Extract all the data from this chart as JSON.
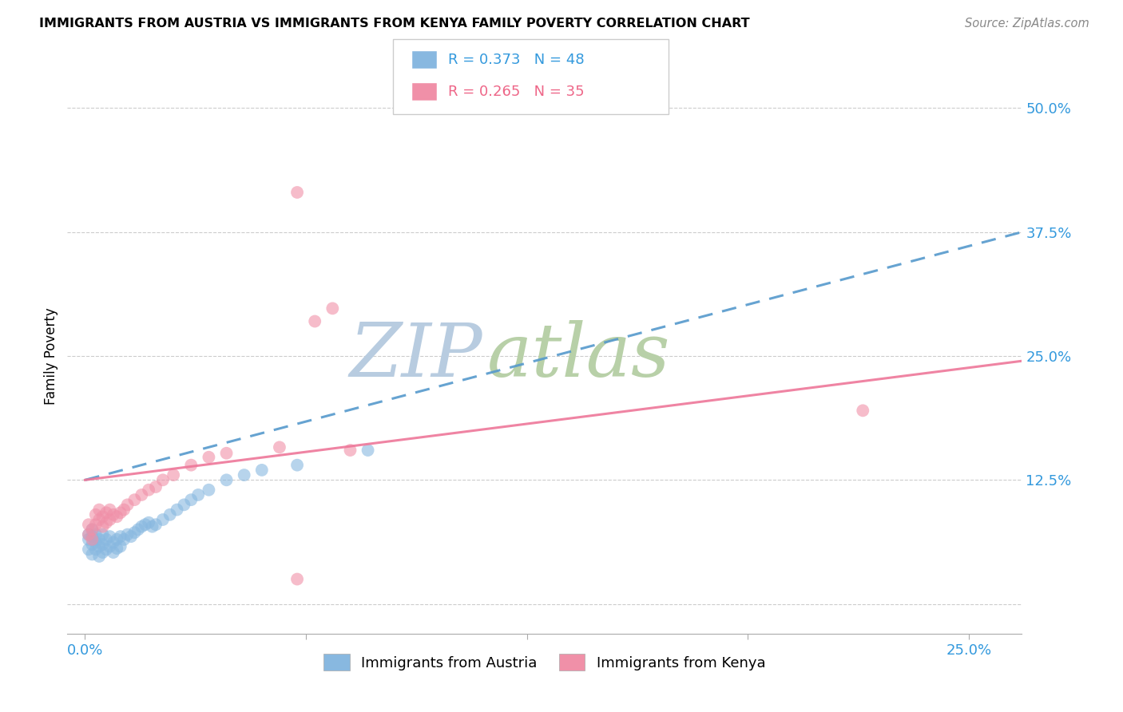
{
  "title": "IMMIGRANTS FROM AUSTRIA VS IMMIGRANTS FROM KENYA FAMILY POVERTY CORRELATION CHART",
  "source": "Source: ZipAtlas.com",
  "ylabel": "Family Poverty",
  "y_ticks": [
    0.0,
    0.125,
    0.25,
    0.375,
    0.5
  ],
  "y_tick_labels": [
    "",
    "12.5%",
    "25.0%",
    "37.5%",
    "50.0%"
  ],
  "x_ticks": [
    0.0,
    0.0625,
    0.125,
    0.1875,
    0.25
  ],
  "x_tick_labels": [
    "0.0%",
    "",
    "",
    "",
    "25.0%"
  ],
  "xlim": [
    -0.005,
    0.265
  ],
  "ylim": [
    -0.03,
    0.53
  ],
  "austria_R": 0.373,
  "austria_N": 48,
  "kenya_R": 0.265,
  "kenya_N": 35,
  "austria_dot_color": "#88b8e0",
  "kenya_dot_color": "#f090a8",
  "austria_line_color": "#5599cc",
  "kenya_line_color": "#ee7799",
  "watermark_zip_color": "#b8cce0",
  "watermark_atlas_color": "#c8d8b0",
  "austria_x": [
    0.001,
    0.001,
    0.001,
    0.002,
    0.002,
    0.002,
    0.002,
    0.003,
    0.003,
    0.003,
    0.004,
    0.004,
    0.004,
    0.005,
    0.005,
    0.005,
    0.006,
    0.006,
    0.007,
    0.007,
    0.008,
    0.008,
    0.009,
    0.009,
    0.01,
    0.01,
    0.011,
    0.012,
    0.013,
    0.014,
    0.015,
    0.016,
    0.017,
    0.018,
    0.019,
    0.02,
    0.022,
    0.024,
    0.026,
    0.028,
    0.03,
    0.032,
    0.035,
    0.04,
    0.045,
    0.05,
    0.06,
    0.08
  ],
  "austria_y": [
    0.055,
    0.065,
    0.07,
    0.05,
    0.06,
    0.068,
    0.075,
    0.055,
    0.062,
    0.07,
    0.048,
    0.058,
    0.065,
    0.052,
    0.06,
    0.07,
    0.055,
    0.065,
    0.058,
    0.068,
    0.052,
    0.062,
    0.056,
    0.065,
    0.058,
    0.068,
    0.065,
    0.07,
    0.068,
    0.072,
    0.075,
    0.078,
    0.08,
    0.082,
    0.078,
    0.08,
    0.085,
    0.09,
    0.095,
    0.1,
    0.105,
    0.11,
    0.115,
    0.125,
    0.13,
    0.135,
    0.14,
    0.155
  ],
  "kenya_x": [
    0.001,
    0.001,
    0.002,
    0.002,
    0.003,
    0.003,
    0.004,
    0.004,
    0.005,
    0.005,
    0.006,
    0.006,
    0.007,
    0.007,
    0.008,
    0.009,
    0.01,
    0.011,
    0.012,
    0.014,
    0.016,
    0.018,
    0.02,
    0.022,
    0.025,
    0.03,
    0.035,
    0.04,
    0.055,
    0.06,
    0.065,
    0.07,
    0.075,
    0.22,
    0.06
  ],
  "kenya_y": [
    0.07,
    0.08,
    0.065,
    0.075,
    0.08,
    0.09,
    0.085,
    0.095,
    0.078,
    0.088,
    0.082,
    0.092,
    0.085,
    0.095,
    0.09,
    0.088,
    0.092,
    0.095,
    0.1,
    0.105,
    0.11,
    0.115,
    0.118,
    0.125,
    0.13,
    0.14,
    0.148,
    0.152,
    0.158,
    0.415,
    0.285,
    0.298,
    0.155,
    0.195,
    0.025
  ],
  "austria_line_x0": 0.0,
  "austria_line_y0": 0.125,
  "austria_line_x1": 0.265,
  "austria_line_y1": 0.375,
  "kenya_line_x0": 0.0,
  "kenya_line_y0": 0.125,
  "kenya_line_x1": 0.265,
  "kenya_line_y1": 0.245
}
